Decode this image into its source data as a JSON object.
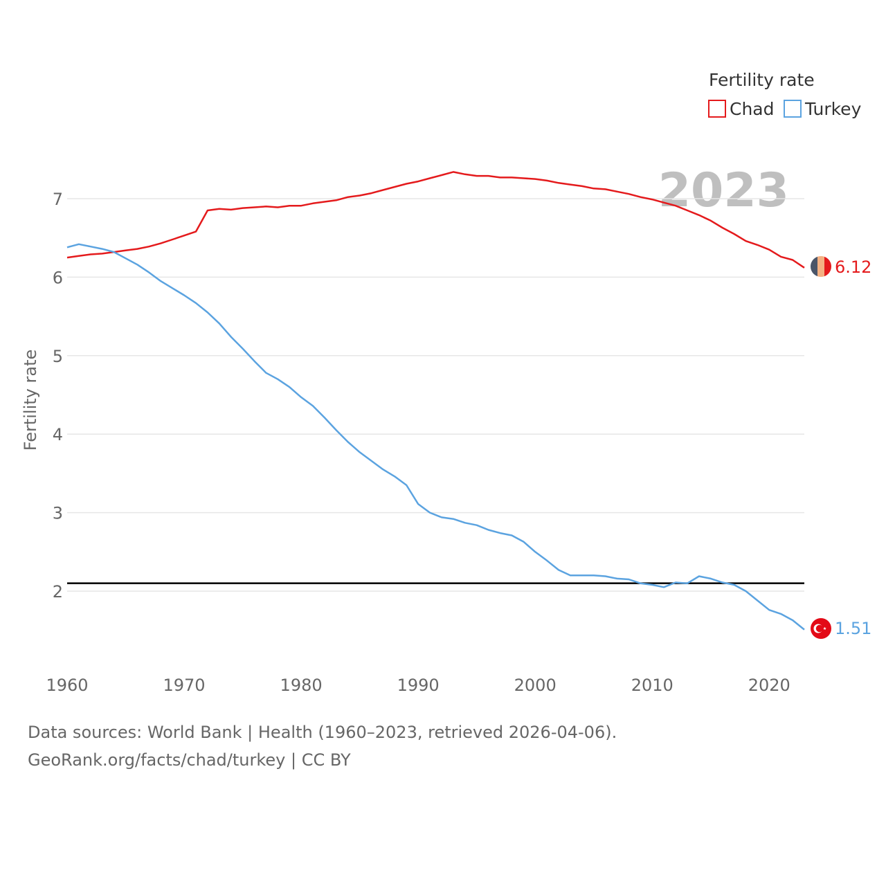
{
  "chart_data": {
    "type": "line",
    "legend_title": "Fertility rate",
    "ylabel": "Fertility rate",
    "xlabel": "",
    "year_badge": "2023",
    "xlim": [
      1960,
      2023
    ],
    "ylim": [
      1.0,
      7.7
    ],
    "x_ticks": [
      1960,
      1970,
      1980,
      1990,
      2000,
      2010,
      2020
    ],
    "y_ticks": [
      2,
      3,
      4,
      5,
      6,
      7
    ],
    "reference_line": {
      "value": 2.1,
      "color": "#000000"
    },
    "x": [
      1960,
      1961,
      1962,
      1963,
      1964,
      1965,
      1966,
      1967,
      1968,
      1969,
      1970,
      1971,
      1972,
      1973,
      1974,
      1975,
      1976,
      1977,
      1978,
      1979,
      1980,
      1981,
      1982,
      1983,
      1984,
      1985,
      1986,
      1987,
      1988,
      1989,
      1990,
      1991,
      1992,
      1993,
      1994,
      1995,
      1996,
      1997,
      1998,
      1999,
      2000,
      2001,
      2002,
      2003,
      2004,
      2005,
      2006,
      2007,
      2008,
      2009,
      2010,
      2011,
      2012,
      2013,
      2014,
      2015,
      2016,
      2017,
      2018,
      2019,
      2020,
      2021,
      2022,
      2023
    ],
    "series": [
      {
        "name": "Chad",
        "color": "#e41a1c",
        "end_label": "6.12",
        "flag": "chad",
        "values": [
          6.25,
          6.27,
          6.29,
          6.3,
          6.32,
          6.34,
          6.36,
          6.39,
          6.43,
          6.48,
          6.53,
          6.58,
          6.85,
          6.87,
          6.86,
          6.88,
          6.89,
          6.9,
          6.89,
          6.91,
          6.91,
          6.94,
          6.96,
          6.98,
          7.02,
          7.04,
          7.07,
          7.11,
          7.15,
          7.19,
          7.22,
          7.26,
          7.3,
          7.34,
          7.31,
          7.29,
          7.29,
          7.27,
          7.27,
          7.26,
          7.25,
          7.23,
          7.2,
          7.18,
          7.16,
          7.13,
          7.12,
          7.09,
          7.06,
          7.02,
          6.99,
          6.95,
          6.91,
          6.85,
          6.79,
          6.72,
          6.63,
          6.55,
          6.46,
          6.41,
          6.35,
          6.26,
          6.22,
          6.12
        ]
      },
      {
        "name": "Turkey",
        "color": "#5ba3e0",
        "end_label": "1.51",
        "flag": "turkey",
        "values": [
          6.38,
          6.42,
          6.39,
          6.36,
          6.32,
          6.24,
          6.16,
          6.06,
          5.95,
          5.86,
          5.77,
          5.67,
          5.55,
          5.41,
          5.24,
          5.09,
          4.93,
          4.78,
          4.7,
          4.6,
          4.47,
          4.36,
          4.21,
          4.05,
          3.9,
          3.77,
          3.66,
          3.55,
          3.46,
          3.35,
          3.11,
          3.0,
          2.94,
          2.92,
          2.87,
          2.84,
          2.78,
          2.74,
          2.71,
          2.63,
          2.5,
          2.39,
          2.27,
          2.2,
          2.2,
          2.2,
          2.19,
          2.16,
          2.15,
          2.1,
          2.08,
          2.05,
          2.11,
          2.1,
          2.19,
          2.16,
          2.11,
          2.08,
          2.0,
          1.88,
          1.76,
          1.71,
          1.63,
          1.51
        ]
      }
    ]
  },
  "footer": {
    "sources": "Data sources: World Bank | Health (1960–2023, retrieved 2026-04-06).",
    "attribution": "GeoRank.org/facts/chad/turkey | CC BY"
  }
}
